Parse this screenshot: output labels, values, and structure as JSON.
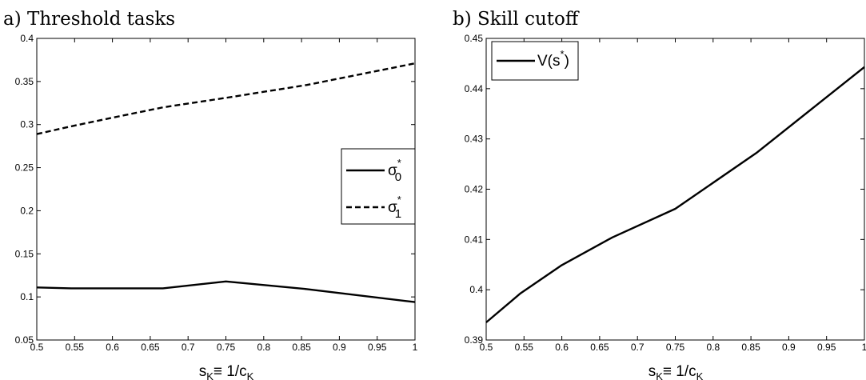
{
  "chart_data": [
    {
      "panel_label": "a) Threshold tasks",
      "type": "line",
      "xlabel": {
        "base": "s",
        "sub1": "K",
        "mid": "≡ 1/c",
        "sub2": "K"
      },
      "xlim": [
        0.5,
        1
      ],
      "ylim": [
        0.05,
        0.4
      ],
      "xticks": [
        "0.5",
        "0.55",
        "0.6",
        "0.65",
        "0.7",
        "0.75",
        "0.8",
        "0.85",
        "0.9",
        "0.95",
        "1"
      ],
      "yticks": [
        "0.05",
        "0.1",
        "0.15",
        "0.2",
        "0.25",
        "0.3",
        "0.35",
        "0.4"
      ],
      "legend_position": "center-right",
      "series": [
        {
          "name": "σ0*",
          "legend": {
            "base": "σ",
            "sup": "*",
            "sub": "0"
          },
          "style": "solid",
          "x": [
            0.5,
            0.5455,
            0.6667,
            0.75,
            0.8571,
            1.0
          ],
          "y": [
            0.111,
            0.11,
            0.11,
            0.118,
            0.109,
            0.094
          ]
        },
        {
          "name": "σ1*",
          "legend": {
            "base": "σ",
            "sup": "*",
            "sub": "1"
          },
          "style": "dashed",
          "x": [
            0.5,
            0.5455,
            0.6,
            0.6667,
            0.75,
            0.8571,
            1.0
          ],
          "y": [
            0.289,
            0.298,
            0.308,
            0.32,
            0.331,
            0.346,
            0.371
          ]
        }
      ]
    },
    {
      "panel_label": "b) Skill cutoff",
      "type": "line",
      "xlabel": {
        "base": "s",
        "sub1": "K",
        "mid": "≡ 1/c",
        "sub2": "K"
      },
      "xlim": [
        0.5,
        1
      ],
      "ylim": [
        0.39,
        0.45
      ],
      "xticks": [
        "0.5",
        "0.55",
        "0.6",
        "0.65",
        "0.7",
        "0.75",
        "0.8",
        "0.85",
        "0.9",
        "0.95",
        "1"
      ],
      "yticks": [
        "0.39",
        "0.4",
        "0.41",
        "0.42",
        "0.43",
        "0.44",
        "0.45"
      ],
      "legend_position": "top-left",
      "series": [
        {
          "name": "V(s*)",
          "legend": {
            "text": "V(s",
            "sup": "*",
            "close": ")"
          },
          "style": "solid",
          "x": [
            0.5,
            0.5455,
            0.6,
            0.6667,
            0.75,
            0.8571,
            1.0
          ],
          "y": [
            0.3935,
            0.3993,
            0.4049,
            0.4104,
            0.4161,
            0.4272,
            0.4443
          ]
        }
      ]
    }
  ]
}
